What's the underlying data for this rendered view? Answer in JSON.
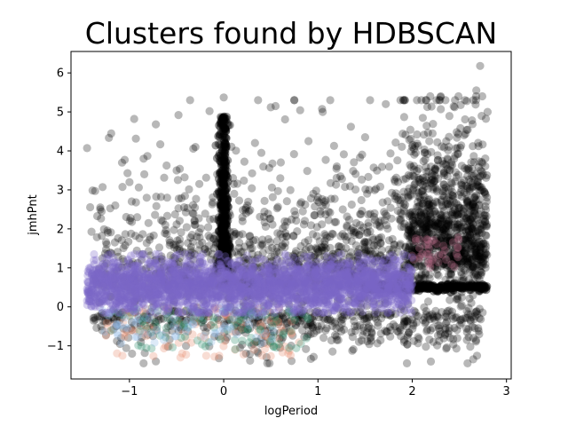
{
  "chart_data": {
    "type": "scatter",
    "title": "Clusters found by HDBSCAN",
    "xlabel": "logPeriod",
    "ylabel": "jmhPnt",
    "xlim": [
      -1.62,
      3.05
    ],
    "ylim": [
      -1.85,
      6.55
    ],
    "xticks": [
      -1,
      0,
      1,
      2,
      3
    ],
    "yticks": [
      -1,
      0,
      1,
      2,
      3,
      4,
      5,
      6
    ],
    "grid": false,
    "legend": "none",
    "series": [
      {
        "role": "noise",
        "color": "#000000",
        "opacity": 0.28,
        "description_of_distribution": "broad cloud over x -1.45..2.8, y -1.5..6.2; dense vertical streak near x=0 up to y~5.3; horizontal streak at y~0.5 for x 1.5..2.8",
        "points": [
          [
            -1.45,
            4.07
          ],
          [
            -0.95,
            4.82
          ],
          [
            -0.72,
            4.68
          ],
          [
            -0.48,
            4.92
          ],
          [
            -0.15,
            5.02
          ],
          [
            0.0,
            5.37
          ],
          [
            0.55,
            5.15
          ],
          [
            1.05,
            5.0
          ],
          [
            1.35,
            4.62
          ],
          [
            1.72,
            5.2
          ],
          [
            2.15,
            5.3
          ],
          [
            2.3,
            5.38
          ],
          [
            2.45,
            5.12
          ],
          [
            2.68,
            5.55
          ],
          [
            2.72,
            6.18
          ],
          [
            2.8,
            5.0
          ],
          [
            -0.85,
            3.8
          ],
          [
            -0.3,
            4.1
          ],
          [
            0.4,
            3.95
          ],
          [
            0.9,
            4.25
          ],
          [
            1.5,
            4.35
          ],
          [
            2.0,
            4.1
          ],
          [
            2.55,
            4.4
          ],
          [
            -1.0,
            3.2
          ],
          [
            -0.5,
            3.5
          ],
          [
            0.6,
            3.3
          ],
          [
            1.2,
            3.6
          ],
          [
            1.85,
            3.2
          ],
          [
            2.4,
            3.5
          ],
          [
            -1.15,
            2.6
          ],
          [
            -0.6,
            2.8
          ],
          [
            0.25,
            2.6
          ],
          [
            0.95,
            2.9
          ],
          [
            1.6,
            2.4
          ],
          [
            2.25,
            2.7
          ],
          [
            -1.3,
            -0.5
          ],
          [
            -0.85,
            -1.45
          ],
          [
            -0.72,
            -1.4
          ],
          [
            -0.05,
            -1.32
          ],
          [
            0.28,
            -1.38
          ],
          [
            0.6,
            -1.05
          ],
          [
            1.2,
            -0.85
          ],
          [
            1.8,
            -0.45
          ],
          [
            2.3,
            -0.7
          ],
          [
            2.58,
            -0.85
          ],
          [
            2.7,
            -0.55
          ],
          [
            -1.1,
            -0.95
          ],
          [
            -0.4,
            -1.0
          ],
          [
            0.9,
            -0.7
          ],
          [
            1.5,
            -0.3
          ]
        ]
      },
      {
        "role": "cluster",
        "color": "#7b68c8",
        "opacity": 0.3,
        "description_of_distribution": "dominant purple band x -1.45..2.0, y -0.15..1.35, centred near y=0.5"
      },
      {
        "role": "cluster",
        "color": "#e89070",
        "opacity": 0.3,
        "description_of_distribution": "minor orange cluster below band, x -1.3..0.8, y -1.3..0"
      },
      {
        "role": "cluster",
        "color": "#2f8f6e",
        "opacity": 0.3,
        "description_of_distribution": "minor green cluster below band, x -1.2..0.9, y -1.1..0"
      },
      {
        "role": "cluster",
        "color": "#8fb8e8",
        "opacity": 0.3,
        "description_of_distribution": "minor light-blue cluster below band, x -1.3..0.6, y -1.0..0"
      },
      {
        "role": "cluster",
        "color": "#c07090",
        "opacity": 0.3,
        "description_of_distribution": "minor pink cluster, x 2.0..2.5, y 1.0..1.8"
      }
    ]
  }
}
